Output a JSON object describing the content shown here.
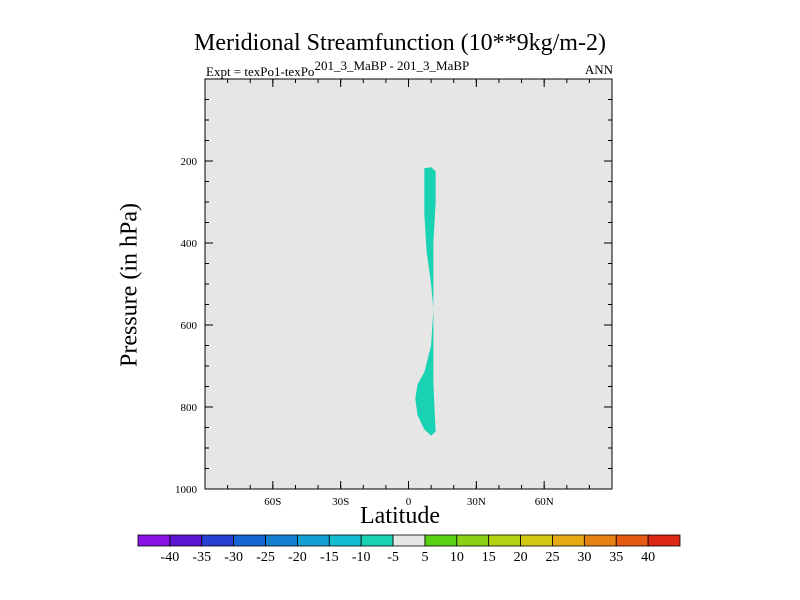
{
  "header": {
    "title": "Meridional Streamfunction (10**9kg/m-2)",
    "expt_prefix": "Expt = texPo1-texPo",
    "expt_suffix": "201_3_MaBP - 201_3_MaBP",
    "season": "ANN"
  },
  "chart_data": {
    "type": "contour",
    "title": "Meridional Streamfunction (10**9kg/m-2)",
    "xlabel": "Latitude",
    "ylabel": "Pressure (in hPa)",
    "xlim": [
      -90,
      90
    ],
    "ylim": [
      1000,
      0
    ],
    "x_ticks": [
      {
        "value": -60,
        "label": "60S"
      },
      {
        "value": -30,
        "label": "30S"
      },
      {
        "value": 0,
        "label": "0"
      },
      {
        "value": 30,
        "label": "30N"
      },
      {
        "value": 60,
        "label": "60N"
      }
    ],
    "y_ticks": [
      {
        "value": 200,
        "label": "200"
      },
      {
        "value": 400,
        "label": "400"
      },
      {
        "value": 600,
        "label": "600"
      },
      {
        "value": 800,
        "label": "800"
      },
      {
        "value": 1000,
        "label": "1000"
      }
    ],
    "background_level": "-5 to 5",
    "background_color": "#e6e6e6",
    "filled_region": {
      "level": "-10 to -5",
      "color": "#19d2b4",
      "lat_pressure_outline": [
        [
          7,
          218
        ],
        [
          10,
          215
        ],
        [
          12,
          225
        ],
        [
          12,
          300
        ],
        [
          11,
          400
        ],
        [
          11,
          500
        ],
        [
          11,
          570
        ],
        [
          11,
          650
        ],
        [
          11,
          740
        ],
        [
          12,
          860
        ],
        [
          10,
          870
        ],
        [
          7,
          855
        ],
        [
          4,
          820
        ],
        [
          3,
          780
        ],
        [
          4,
          745
        ],
        [
          7,
          715
        ],
        [
          10,
          650
        ],
        [
          11,
          560
        ],
        [
          10,
          500
        ],
        [
          8,
          420
        ],
        [
          7,
          330
        ],
        [
          7,
          230
        ]
      ]
    },
    "colorbar": {
      "labels": [
        "-40",
        "-35",
        "-30",
        "-25",
        "-20",
        "-15",
        "-10",
        "-5",
        "5",
        "10",
        "15",
        "20",
        "25",
        "30",
        "35",
        "40"
      ],
      "colors": [
        "#8a14e6",
        "#5a14d2",
        "#2840d2",
        "#1466d2",
        "#1480d2",
        "#14a0d2",
        "#14bed2",
        "#19d2b4",
        "#e6e6e6",
        "#5ad214",
        "#8cd214",
        "#b4d214",
        "#d2c814",
        "#e6aa14",
        "#e68214",
        "#e65a14",
        "#dc2814"
      ]
    }
  }
}
